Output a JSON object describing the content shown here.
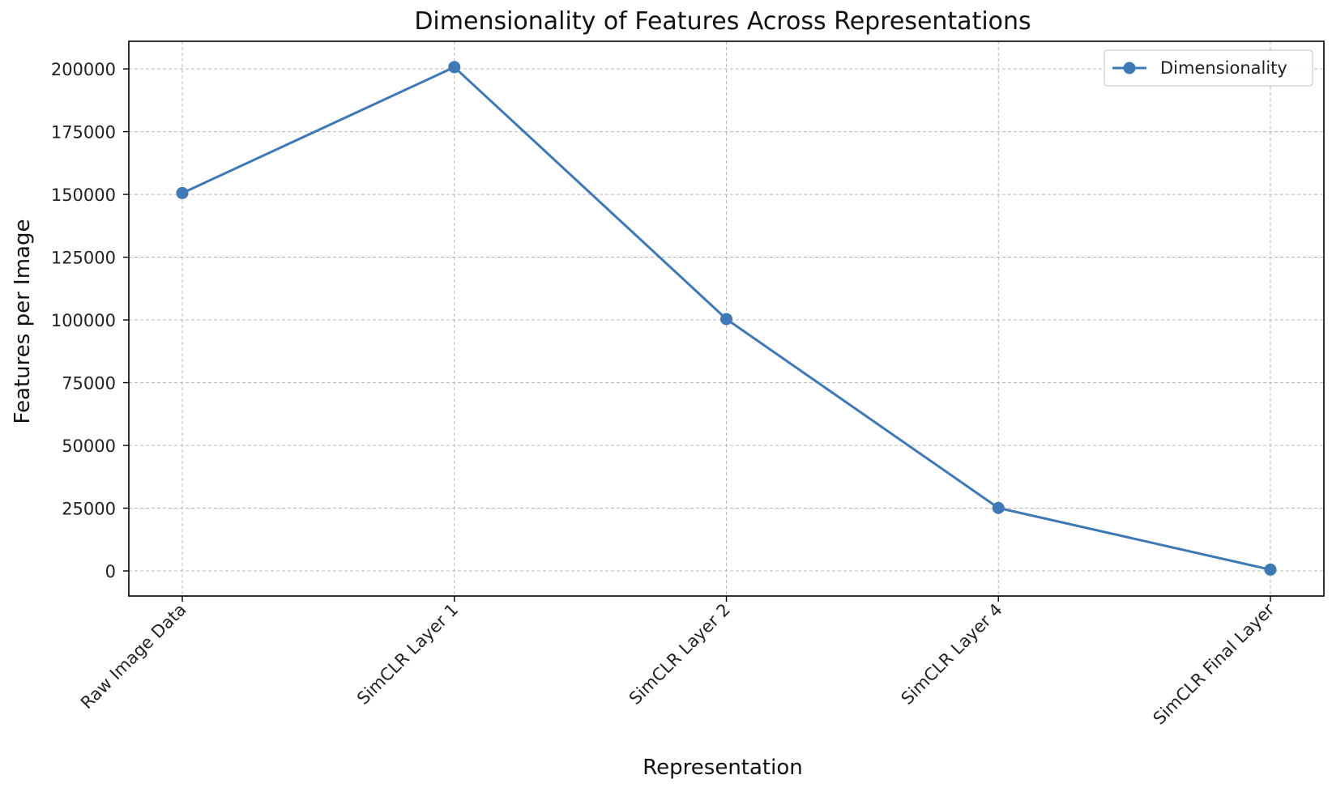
{
  "chart_data": {
    "type": "line",
    "title": "Dimensionality of Features Across Representations",
    "xlabel": "Representation",
    "ylabel": "Features per Image",
    "categories": [
      "Raw Image Data",
      "SimCLR Layer 1",
      "SimCLR Layer 2",
      "SimCLR Layer 4",
      "SimCLR Final Layer"
    ],
    "series": [
      {
        "name": "Dimensionality",
        "values": [
          150528,
          200704,
          100352,
          25088,
          512
        ],
        "color": "#3e78b5",
        "marker": "circle"
      }
    ],
    "ylim": [
      -10000,
      211000
    ],
    "yticks": [
      0,
      25000,
      50000,
      75000,
      100000,
      125000,
      150000,
      175000,
      200000
    ],
    "ytick_labels": [
      "0",
      "25000",
      "50000",
      "75000",
      "100000",
      "125000",
      "150000",
      "175000",
      "200000"
    ],
    "grid": true,
    "legend_position": "top-right"
  }
}
